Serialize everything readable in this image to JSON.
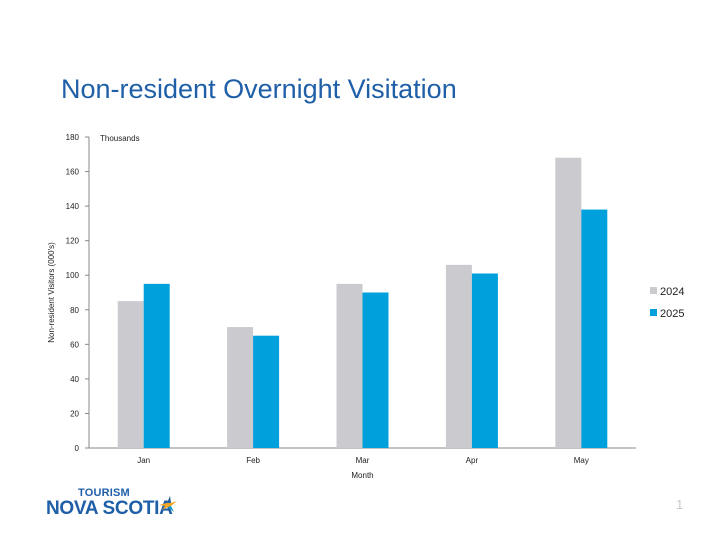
{
  "slide": {
    "title": "Non-resident Overnight Visitation",
    "page_number": "1"
  },
  "logo": {
    "top_text": "TOURISM",
    "main_text": "NOVA SCOTIA",
    "icon": "bird-icon",
    "brand_color": "#1f5fa8"
  },
  "chart_data": {
    "type": "bar",
    "categories": [
      "Jan",
      "Feb",
      "Mar",
      "Apr",
      "May"
    ],
    "series": [
      {
        "name": "2024",
        "values": [
          85,
          70,
          95,
          106,
          168
        ],
        "color": "#cbcbcf"
      },
      {
        "name": "2025",
        "values": [
          95,
          65,
          90,
          101,
          138
        ],
        "color": "#00a0dc"
      }
    ],
    "xlabel": "Month",
    "ylabel": "Non-resident Visitors (000's)",
    "unit_label": "Thousands",
    "ylim": [
      0,
      180
    ],
    "yticks": [
      0,
      20,
      40,
      60,
      80,
      100,
      120,
      140,
      160,
      180
    ],
    "grid": false,
    "legend": "right"
  }
}
